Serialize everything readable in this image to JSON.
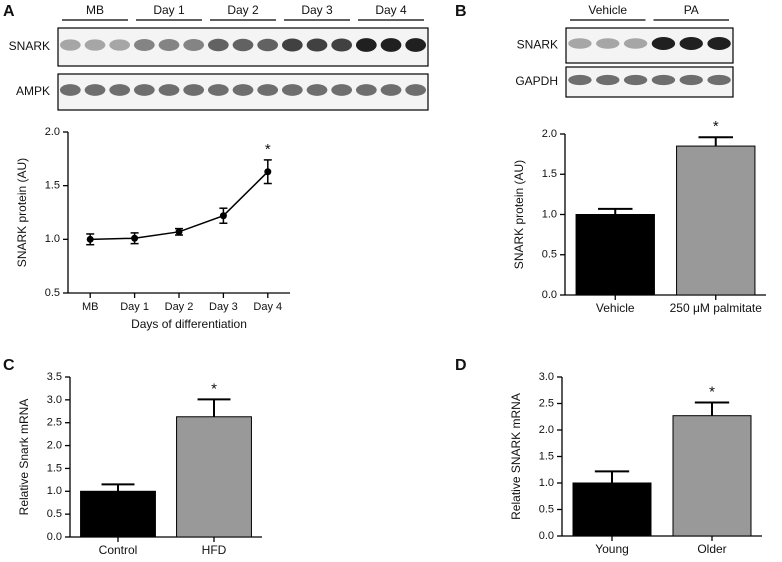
{
  "panels": [
    "A",
    "B",
    "C",
    "D"
  ],
  "blots": [
    {
      "lanes": [
        "MB",
        "Day 1",
        "Day 2",
        "Day 3",
        "Day 4"
      ],
      "rows": [
        "SNARK",
        "AMPK"
      ]
    },
    {
      "lanes": [
        "Vehicle",
        "PA"
      ],
      "rows": [
        "SNARK",
        "GAPDH"
      ]
    }
  ],
  "chart_data": [
    {
      "type": "line",
      "categories": [
        "MB",
        "Day 1",
        "Day 2",
        "Day 3",
        "Day 4"
      ],
      "values": [
        1.0,
        1.01,
        1.07,
        1.22,
        1.63
      ],
      "errors": [
        0.05,
        0.05,
        0.03,
        0.07,
        0.11
      ],
      "significance": [
        null,
        null,
        null,
        null,
        "*"
      ],
      "color": "#000000",
      "xlabel": "Days of differentiation",
      "ylabel": "SNARK protein (AU)",
      "ylim": [
        0.5,
        2.0
      ],
      "yticks": [
        0.5,
        {
          "value": 1,
          "label": "1.0"
        },
        1.5,
        {
          "value": 2,
          "label": "2.0"
        }
      ]
    },
    {
      "type": "bar",
      "categories": [
        "Vehicle",
        "250 μM palmitate"
      ],
      "values": [
        1.0,
        1.85
      ],
      "errors": [
        0.07,
        0.11
      ],
      "significance": [
        null,
        "*"
      ],
      "colors": [
        "#000000",
        "#999999"
      ],
      "ylabel": "SNARK protein (AU)",
      "ylim": [
        0,
        2.0
      ],
      "yticks": [
        {
          "value": 0,
          "label": "0.0"
        },
        0.5,
        {
          "value": 1,
          "label": "1.0"
        },
        1.5,
        {
          "value": 2,
          "label": "2.0"
        }
      ]
    },
    {
      "type": "bar",
      "categories": [
        "Control",
        "HFD"
      ],
      "values": [
        1.0,
        2.63
      ],
      "errors": [
        0.15,
        0.38
      ],
      "significance": [
        null,
        "*"
      ],
      "colors": [
        "#000000",
        "#999999"
      ],
      "ylabel": "Relative Snark mRNA",
      "ylim": [
        0,
        3.5
      ],
      "yticks": [
        {
          "value": 0,
          "label": "0.0"
        },
        0.5,
        {
          "value": 1,
          "label": "1.0"
        },
        1.5,
        {
          "value": 2,
          "label": "2.0"
        },
        2.5,
        {
          "value": 3,
          "label": "3.0"
        },
        3.5
      ]
    },
    {
      "type": "bar",
      "categories": [
        "Young",
        "Older"
      ],
      "values": [
        1.0,
        2.27
      ],
      "errors": [
        0.22,
        0.25
      ],
      "significance": [
        null,
        "*"
      ],
      "colors": [
        "#000000",
        "#999999"
      ],
      "ylabel": "Relative SNARK mRNA",
      "ylim": [
        0,
        3.0
      ],
      "yticks": [
        {
          "value": 0,
          "label": "0.0"
        },
        0.5,
        {
          "value": 1,
          "label": "1.0"
        },
        1.5,
        {
          "value": 2,
          "label": "2.0"
        },
        2.5,
        {
          "value": 3,
          "label": "3.0"
        }
      ]
    }
  ]
}
